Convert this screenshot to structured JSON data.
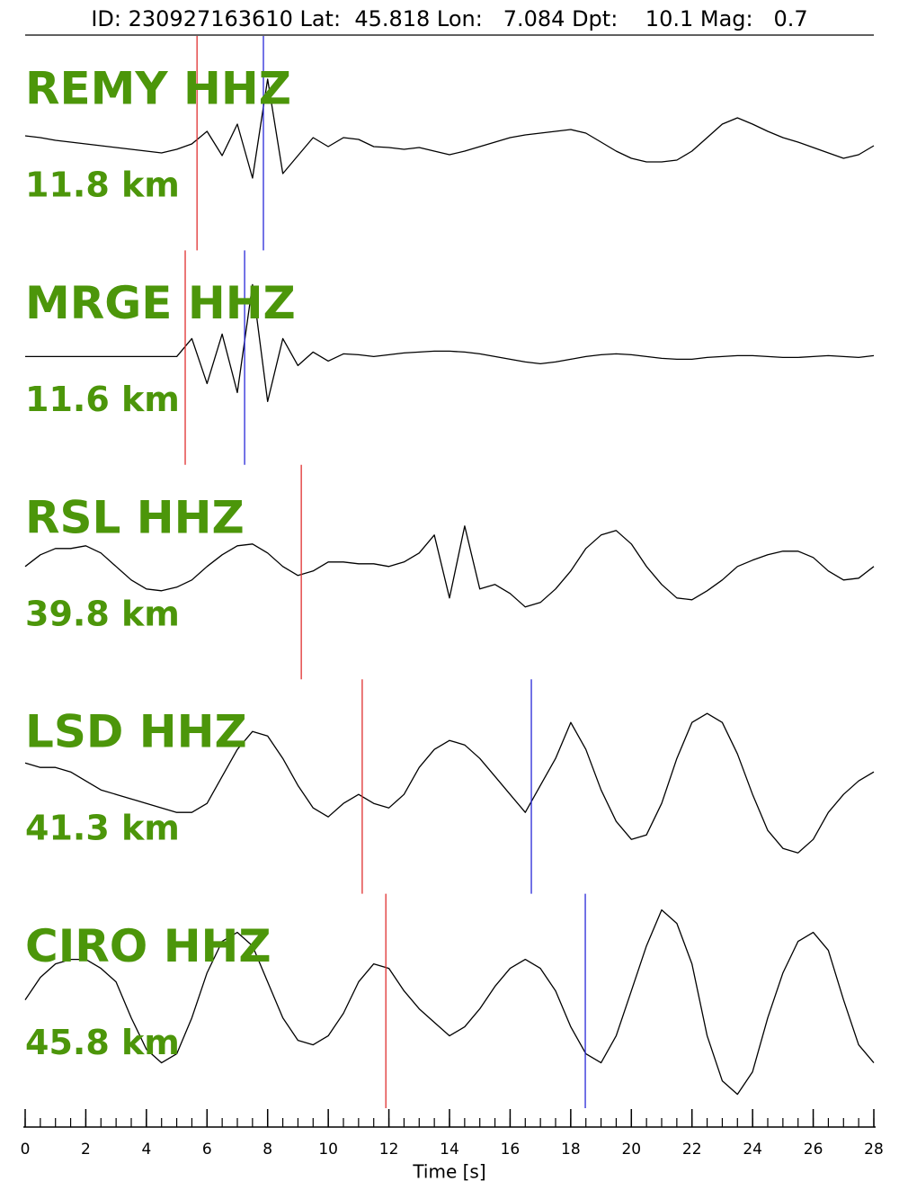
{
  "chart_data": {
    "type": "line",
    "title": "ID: 230927163610 Lat:  45.818 Lon:   7.084 Dpt:    10.1 Mag:   0.7",
    "xlabel": "Time [s]",
    "xlim": [
      0,
      28
    ],
    "xticks": [
      0,
      2,
      4,
      6,
      8,
      10,
      12,
      14,
      16,
      18,
      20,
      22,
      24,
      26,
      28
    ],
    "xminorticks": [
      0,
      0.5,
      1,
      1.5,
      2,
      2.5,
      3,
      3.5,
      4,
      4.5,
      5,
      5.5,
      6,
      6.5,
      7,
      7.5,
      8,
      8.5,
      9,
      9.5,
      10,
      10.5,
      11,
      11.5,
      12,
      12.5,
      13,
      13.5,
      14,
      14.5,
      15,
      15.5,
      16,
      16.5,
      17,
      17.5,
      18,
      18.5,
      19,
      19.5,
      20,
      20.5,
      21,
      21.5,
      22,
      22.5,
      23,
      23.5,
      24,
      24.5,
      25,
      25.5,
      26,
      26.5,
      27,
      27.5,
      28
    ],
    "x": [
      0,
      0.5,
      1,
      1.5,
      2,
      2.5,
      3,
      3.5,
      4,
      4.5,
      5,
      5.5,
      6,
      6.5,
      7,
      7.5,
      8,
      8.5,
      9,
      9.5,
      10,
      10.5,
      11,
      11.5,
      12,
      12.5,
      13,
      13.5,
      14,
      14.5,
      15,
      15.5,
      16,
      16.5,
      17,
      17.5,
      18,
      18.5,
      19,
      19.5,
      20,
      20.5,
      21,
      21.5,
      22,
      22.5,
      23,
      23.5,
      24,
      24.5,
      25,
      25.5,
      26,
      26.5,
      27,
      27.5,
      28
    ],
    "label_color": "#4c960a",
    "trace_color": "#000000",
    "p_color": "#e03030",
    "s_color": "#2828d8",
    "panels": [
      {
        "name": "REMY HHZ",
        "distance": "11.8 km",
        "p_pick": 5.67,
        "s_pick": 7.86,
        "values": [
          7,
          5,
          2,
          0,
          -2,
          -4,
          -6,
          -8,
          -10,
          -12,
          -8,
          -2,
          12,
          -15,
          20,
          -40,
          70,
          -35,
          -15,
          5,
          -5,
          5,
          3,
          -5,
          -6,
          -8,
          -6,
          -10,
          -14,
          -10,
          -5,
          0,
          5,
          8,
          10,
          12,
          14,
          10,
          0,
          -10,
          -18,
          -22,
          -22,
          -20,
          -10,
          5,
          20,
          27,
          20,
          12,
          5,
          0,
          -6,
          -12,
          -18,
          -14,
          -4
        ]
      },
      {
        "name": "MRGE HHZ",
        "distance": "11.6 km",
        "p_pick": 5.28,
        "s_pick": 7.24,
        "values": [
          0,
          0,
          0,
          0,
          0,
          0,
          0,
          0,
          0,
          0,
          0,
          20,
          -30,
          25,
          -40,
          80,
          -50,
          20,
          -10,
          5,
          -5,
          3,
          2,
          0,
          2,
          4,
          5,
          6,
          6,
          5,
          3,
          0,
          -3,
          -6,
          -8,
          -6,
          -3,
          0,
          2,
          3,
          2,
          0,
          -2,
          -3,
          -3,
          -1,
          0,
          1,
          1,
          0,
          -1,
          -1,
          0,
          1,
          0,
          -1,
          1
        ]
      },
      {
        "name": "RSL HHZ",
        "distance": "39.8 km",
        "p_pick": 9.11,
        "s_pick": null,
        "values": [
          5,
          18,
          25,
          25,
          28,
          20,
          5,
          -10,
          -20,
          -22,
          -18,
          -10,
          5,
          18,
          28,
          30,
          20,
          5,
          -5,
          0,
          10,
          10,
          8,
          8,
          5,
          10,
          20,
          40,
          -30,
          50,
          -20,
          -15,
          -25,
          -40,
          -35,
          -20,
          0,
          25,
          40,
          45,
          30,
          5,
          -15,
          -30,
          -32,
          -22,
          -10,
          5,
          12,
          18,
          22,
          22,
          15,
          0,
          -10,
          -8,
          5
        ]
      },
      {
        "name": "LSD HHZ",
        "distance": "41.3 km",
        "p_pick": 11.12,
        "s_pick": 16.7,
        "values": [
          25,
          20,
          20,
          15,
          5,
          -5,
          -10,
          -15,
          -20,
          -25,
          -30,
          -30,
          -20,
          10,
          40,
          60,
          55,
          30,
          0,
          -25,
          -35,
          -20,
          -10,
          -20,
          -25,
          -10,
          20,
          40,
          50,
          45,
          30,
          10,
          -10,
          -30,
          0,
          30,
          70,
          40,
          -5,
          -40,
          -60,
          -55,
          -20,
          30,
          70,
          80,
          70,
          35,
          -10,
          -50,
          -70,
          -75,
          -60,
          -30,
          -10,
          5,
          15
        ]
      },
      {
        "name": "CIRO HHZ",
        "distance": "45.8 km",
        "p_pick": 11.9,
        "s_pick": 18.48,
        "values": [
          0,
          25,
          40,
          45,
          45,
          35,
          20,
          -20,
          -55,
          -70,
          -60,
          -20,
          30,
          65,
          75,
          60,
          20,
          -20,
          -45,
          -50,
          -40,
          -15,
          20,
          40,
          35,
          10,
          -10,
          -25,
          -40,
          -30,
          -10,
          15,
          35,
          45,
          35,
          10,
          -30,
          -60,
          -70,
          -40,
          10,
          60,
          100,
          85,
          40,
          -40,
          -90,
          -105,
          -80,
          -20,
          30,
          65,
          75,
          55,
          0,
          -50,
          -70
        ]
      }
    ]
  }
}
